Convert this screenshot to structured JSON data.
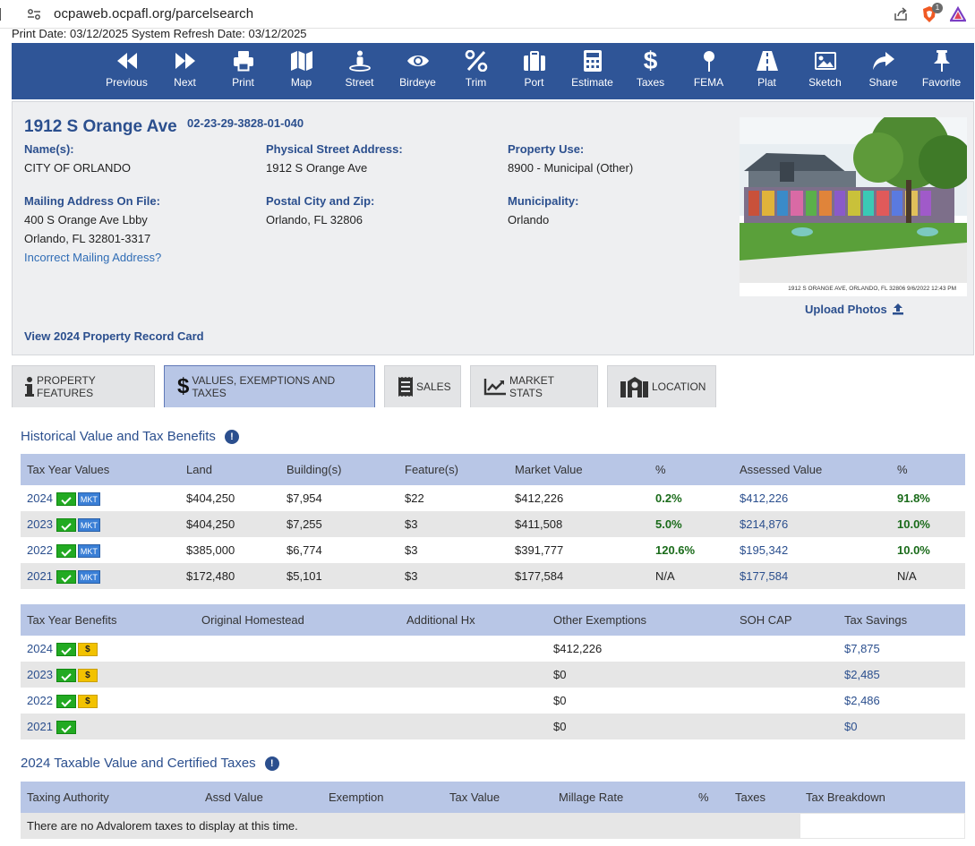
{
  "browser": {
    "url": "ocpaweb.ocpafl.org/parcelsearch",
    "badge_count": "1"
  },
  "print_line": "Print Date: 03/12/2025 System Refresh Date: 03/12/2025",
  "toolbar": [
    {
      "label": "Previous",
      "icon": "previous-icon"
    },
    {
      "label": "Next",
      "icon": "next-icon"
    },
    {
      "label": "Print",
      "icon": "print-icon"
    },
    {
      "label": "Map",
      "icon": "map-icon"
    },
    {
      "label": "Street",
      "icon": "street-icon"
    },
    {
      "label": "Birdeye",
      "icon": "eye-icon"
    },
    {
      "label": "Trim",
      "icon": "percent-icon"
    },
    {
      "label": "Port",
      "icon": "briefcase-icon"
    },
    {
      "label": "Estimate",
      "icon": "calculator-icon"
    },
    {
      "label": "Taxes",
      "icon": "dollar-icon"
    },
    {
      "label": "FEMA",
      "icon": "pin-icon"
    },
    {
      "label": "Plat",
      "icon": "road-icon"
    },
    {
      "label": "Sketch",
      "icon": "image-icon"
    },
    {
      "label": "Share",
      "icon": "share-icon"
    },
    {
      "label": "Favorite",
      "icon": "thumbtack-icon"
    }
  ],
  "property": {
    "address": "1912 S Orange Ave",
    "parcel_id": "02-23-29-3828-01-040",
    "names_label": "Name(s):",
    "names_value": "CITY OF ORLANDO",
    "physical_label": "Physical Street Address:",
    "physical_value": "1912 S Orange Ave",
    "use_label": "Property Use:",
    "use_value": "8900 - Municipal (Other)",
    "mailing_label": "Mailing Address On File:",
    "mailing_line1": "400 S Orange Ave Lbby",
    "mailing_line2": "Orlando, FL 32801-3317",
    "incorrect_link": "Incorrect Mailing Address?",
    "postal_label": "Postal City and Zip:",
    "postal_value": "Orlando, FL 32806",
    "municipality_label": "Municipality:",
    "municipality_value": "Orlando",
    "record_card_link": "View 2024 Property Record Card",
    "photo_caption": "1912 S ORANGE AVE, ORLANDO, FL 32806   9/6/2022 12:43 PM",
    "upload_link": "Upload Photos"
  },
  "tabs": [
    {
      "label": "PROPERTY FEATURES",
      "icon": "info-icon",
      "active": false
    },
    {
      "label": "VALUES, EXEMPTIONS AND TAXES",
      "icon": "dollar-icon",
      "active": true
    },
    {
      "label": "SALES",
      "icon": "receipt-icon",
      "active": false
    },
    {
      "label": "MARKET STATS",
      "icon": "chart-line-icon",
      "active": false
    },
    {
      "label": "LOCATION",
      "icon": "building-pin-icon",
      "active": false
    }
  ],
  "historical": {
    "title": "Historical Value and Tax Benefits",
    "headers": [
      "Tax Year Values",
      "Land",
      "Building(s)",
      "Feature(s)",
      "Market Value",
      "%",
      "Assessed Value",
      "%"
    ],
    "badge_mkt": "MKT",
    "rows": [
      {
        "year": "2024",
        "land": "$404,250",
        "building": "$7,954",
        "feature": "$22",
        "market": "$412,226",
        "market_pct": "0.2%",
        "assessed": "$412,226",
        "assessed_pct": "91.8%"
      },
      {
        "year": "2023",
        "land": "$404,250",
        "building": "$7,255",
        "feature": "$3",
        "market": "$411,508",
        "market_pct": "5.0%",
        "assessed": "$214,876",
        "assessed_pct": "10.0%"
      },
      {
        "year": "2022",
        "land": "$385,000",
        "building": "$6,774",
        "feature": "$3",
        "market": "$391,777",
        "market_pct": "120.6%",
        "assessed": "$195,342",
        "assessed_pct": "10.0%"
      },
      {
        "year": "2021",
        "land": "$172,480",
        "building": "$5,101",
        "feature": "$3",
        "market": "$177,584",
        "market_pct": "N/A",
        "assessed": "$177,584",
        "assessed_pct": "N/A"
      }
    ]
  },
  "benefits": {
    "headers": [
      "Tax Year Benefits",
      "Original Homestead",
      "Additional Hx",
      "Other Exemptions",
      "SOH CAP",
      "Tax Savings"
    ],
    "badge_dollar": "$",
    "rows": [
      {
        "year": "2024",
        "other": "$412,226",
        "savings": "$7,875",
        "has_dollar": true
      },
      {
        "year": "2023",
        "other": "$0",
        "savings": "$2,485",
        "has_dollar": true
      },
      {
        "year": "2022",
        "other": "$0",
        "savings": "$2,486",
        "has_dollar": true
      },
      {
        "year": "2021",
        "other": "$0",
        "savings": "$0",
        "has_dollar": false
      }
    ]
  },
  "taxable": {
    "title": "2024 Taxable Value and Certified Taxes",
    "headers": [
      "Taxing Authority",
      "Assd Value",
      "Exemption",
      "Tax Value",
      "Millage Rate",
      "%",
      "Taxes",
      "Tax Breakdown"
    ],
    "empty_message": "There are no Advalorem taxes to display at this time."
  },
  "colors": {
    "toolbar_bg": "#2f5597",
    "header_blue": "#b8c6e6",
    "title_blue": "#2b4f8e"
  }
}
